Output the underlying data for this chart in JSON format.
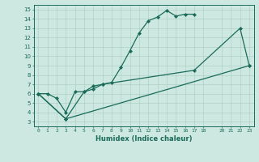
{
  "xlabel": "Humidex (Indice chaleur)",
  "bg_color": "#cde8e0",
  "line_color": "#1a6b5a",
  "grid_color": "#a8ccbf",
  "xlim": [
    -0.5,
    23.5
  ],
  "ylim": [
    2.5,
    15.5
  ],
  "xticks": [
    0,
    1,
    2,
    3,
    4,
    5,
    6,
    7,
    8,
    9,
    10,
    11,
    12,
    13,
    14,
    15,
    16,
    17,
    18,
    20,
    21,
    22,
    23
  ],
  "yticks": [
    3,
    4,
    5,
    6,
    7,
    8,
    9,
    10,
    11,
    12,
    13,
    14,
    15
  ],
  "line1_x": [
    0,
    1,
    2,
    3,
    4,
    5,
    6,
    7,
    8,
    9,
    10,
    11,
    12,
    13,
    14,
    15,
    16,
    17
  ],
  "line1_y": [
    6.0,
    6.0,
    5.5,
    4.0,
    6.2,
    6.2,
    6.5,
    7.0,
    7.2,
    8.8,
    10.6,
    12.5,
    13.8,
    14.2,
    14.9,
    14.3,
    14.5,
    14.5
  ],
  "line2_x": [
    0,
    3,
    5,
    6,
    7,
    17,
    22,
    23
  ],
  "line2_y": [
    6.0,
    3.3,
    6.2,
    6.8,
    7.0,
    8.5,
    13.0,
    9.0
  ],
  "line3_x": [
    0,
    3,
    23
  ],
  "line3_y": [
    6.0,
    3.3,
    9.0
  ]
}
